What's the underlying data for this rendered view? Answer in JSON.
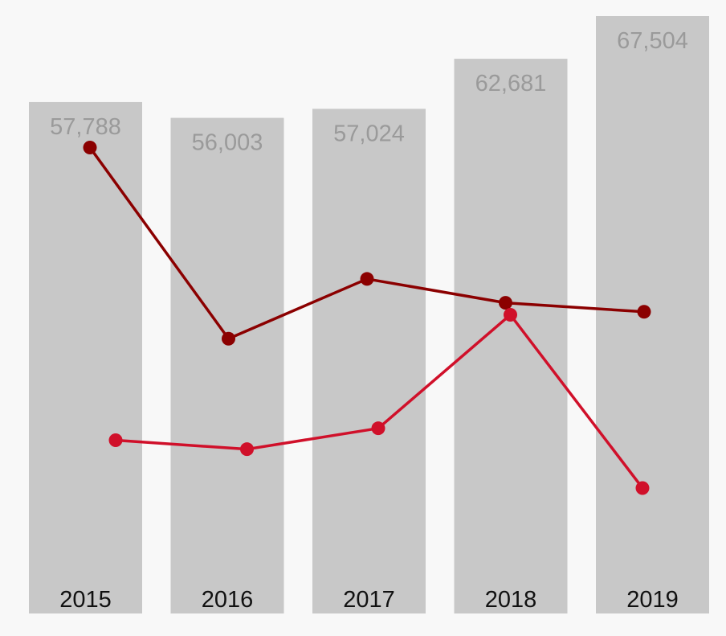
{
  "chart_data": {
    "type": "bar",
    "categories": [
      "2015",
      "2016",
      "2017",
      "2018",
      "2019"
    ],
    "values": [
      57788,
      56003,
      57024,
      62681,
      67504
    ],
    "value_labels": [
      "57,788",
      "56,003",
      "57,024",
      "62,681",
      "67,504"
    ],
    "title": "",
    "xlabel": "",
    "ylabel": "",
    "ylim": [
      0,
      67504
    ],
    "grid": false,
    "legend": "none",
    "bar_color": "#c8c8c8",
    "overlay_lines": [
      {
        "color": "#8b0000",
        "values": [
          0.78,
          0.46,
          0.56,
          0.52,
          0.505
        ]
      },
      {
        "color": "#d0102a",
        "values": [
          0.29,
          0.275,
          0.31,
          0.5,
          0.21
        ]
      }
    ]
  }
}
